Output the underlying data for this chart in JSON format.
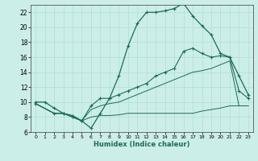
{
  "xlabel": "Humidex (Indice chaleur)",
  "bg_color": "#cceee8",
  "line_color": "#1a6b5a",
  "grid_color": "#b0ddd6",
  "xlim": [
    -0.5,
    23.5
  ],
  "ylim": [
    6,
    23
  ],
  "xticks": [
    0,
    1,
    2,
    3,
    4,
    5,
    6,
    7,
    8,
    9,
    10,
    11,
    12,
    13,
    14,
    15,
    16,
    17,
    18,
    19,
    20,
    21,
    22,
    23
  ],
  "yticks": [
    6,
    8,
    10,
    12,
    14,
    16,
    18,
    20,
    22
  ],
  "curve1_x": [
    0,
    1,
    2,
    3,
    4,
    5,
    6,
    7,
    8,
    9,
    10,
    11,
    12,
    13,
    14,
    15,
    16,
    17,
    18,
    19,
    20,
    21,
    22,
    23
  ],
  "curve1_y": [
    10.0,
    10.0,
    9.2,
    8.5,
    8.2,
    7.5,
    6.5,
    8.5,
    10.5,
    13.5,
    17.5,
    20.5,
    22.0,
    22.0,
    22.2,
    22.5,
    23.2,
    21.5,
    20.2,
    19.0,
    16.5,
    16.0,
    13.5,
    11.0
  ],
  "curve2_x": [
    0,
    2,
    3,
    4,
    5,
    6,
    7,
    8,
    9,
    10,
    11,
    12,
    13,
    14,
    15,
    16,
    17,
    18,
    19,
    20,
    21,
    22,
    23
  ],
  "curve2_y": [
    9.8,
    8.5,
    8.5,
    8.0,
    7.5,
    9.5,
    10.5,
    10.5,
    11.0,
    11.5,
    12.0,
    12.5,
    13.5,
    14.0,
    14.5,
    16.8,
    17.2,
    16.5,
    16.0,
    16.2,
    16.0,
    11.5,
    10.5
  ],
  "curve3_x": [
    0,
    2,
    3,
    4,
    5,
    6,
    7,
    8,
    9,
    10,
    11,
    12,
    13,
    14,
    15,
    16,
    17,
    18,
    19,
    20,
    21,
    22,
    23
  ],
  "curve3_y": [
    9.8,
    8.5,
    8.5,
    8.0,
    7.5,
    9.0,
    9.5,
    9.8,
    10.0,
    10.5,
    11.0,
    11.5,
    12.0,
    12.5,
    13.0,
    13.5,
    14.0,
    14.2,
    14.5,
    15.0,
    15.5,
    9.5,
    9.5
  ],
  "curve4_x": [
    0,
    2,
    3,
    4,
    5,
    6,
    7,
    8,
    9,
    10,
    11,
    12,
    13,
    14,
    15,
    16,
    17,
    18,
    19,
    20,
    21,
    22,
    23
  ],
  "curve4_y": [
    9.8,
    8.5,
    8.5,
    8.0,
    7.5,
    8.0,
    8.2,
    8.2,
    8.3,
    8.5,
    8.5,
    8.5,
    8.5,
    8.5,
    8.5,
    8.5,
    8.5,
    8.8,
    9.0,
    9.2,
    9.5,
    9.5,
    9.5
  ]
}
